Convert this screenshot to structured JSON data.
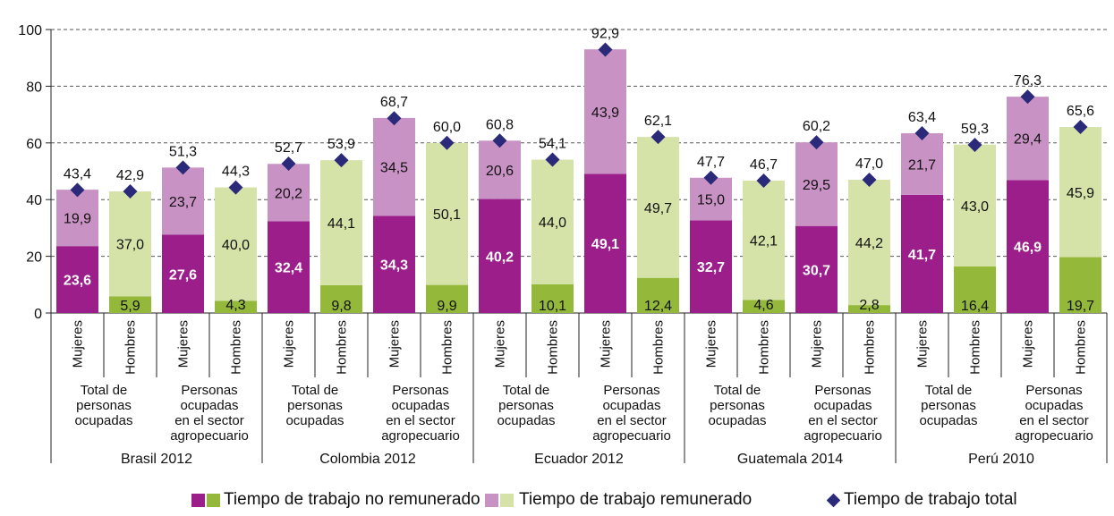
{
  "chart_data": {
    "type": "bar",
    "stacked": true,
    "ylim": [
      0,
      100
    ],
    "yticks": [
      0,
      20,
      40,
      60,
      80,
      100
    ],
    "ytick_labels": [
      "0",
      "20",
      "40",
      "60",
      "80",
      "100"
    ],
    "grid": "dashed-horizontal",
    "legend_position": "bottom",
    "gender_labels": [
      "Mujeres",
      "Hombres"
    ],
    "countries": [
      {
        "label": "Brasil 2012",
        "groups": [
          {
            "label_lines": [
              "Total de",
              "personas",
              "ocupadas"
            ],
            "bars": [
              {
                "gender": "Mujeres",
                "no_rem": 23.6,
                "no_rem_label": "23,6",
                "rem": 19.9,
                "rem_label": "19,9",
                "total": 43.4,
                "total_label": "43,4"
              },
              {
                "gender": "Hombres",
                "no_rem": 5.9,
                "no_rem_label": "5,9",
                "rem": 37.0,
                "rem_label": "37,0",
                "total": 42.9,
                "total_label": "42,9"
              }
            ]
          },
          {
            "label_lines": [
              "Personas",
              "ocupadas",
              "en el sector",
              "agropecuario"
            ],
            "bars": [
              {
                "gender": "Mujeres",
                "no_rem": 27.6,
                "no_rem_label": "27,6",
                "rem": 23.7,
                "rem_label": "23,7",
                "total": 51.3,
                "total_label": "51,3"
              },
              {
                "gender": "Hombres",
                "no_rem": 4.3,
                "no_rem_label": "4,3",
                "rem": 40.0,
                "rem_label": "40,0",
                "total": 44.3,
                "total_label": "44,3"
              }
            ]
          }
        ]
      },
      {
        "label": "Colombia 2012",
        "groups": [
          {
            "label_lines": [
              "Total de",
              "personas",
              "ocupadas"
            ],
            "bars": [
              {
                "gender": "Mujeres",
                "no_rem": 32.4,
                "no_rem_label": "32,4",
                "rem": 20.2,
                "rem_label": "20,2",
                "total": 52.7,
                "total_label": "52,7"
              },
              {
                "gender": "Hombres",
                "no_rem": 9.8,
                "no_rem_label": "9,8",
                "rem": 44.1,
                "rem_label": "44,1",
                "total": 53.9,
                "total_label": "53,9"
              }
            ]
          },
          {
            "label_lines": [
              "Personas",
              "ocupadas",
              "en el sector",
              "agropecuario"
            ],
            "bars": [
              {
                "gender": "Mujeres",
                "no_rem": 34.3,
                "no_rem_label": "34,3",
                "rem": 34.5,
                "rem_label": "34,5",
                "total": 68.7,
                "total_label": "68,7"
              },
              {
                "gender": "Hombres",
                "no_rem": 9.9,
                "no_rem_label": "9,9",
                "rem": 50.1,
                "rem_label": "50,1",
                "total": 60.0,
                "total_label": "60,0"
              }
            ]
          }
        ]
      },
      {
        "label": "Ecuador 2012",
        "groups": [
          {
            "label_lines": [
              "Total de",
              "personas",
              "ocupadas"
            ],
            "bars": [
              {
                "gender": "Mujeres",
                "no_rem": 40.2,
                "no_rem_label": "40,2",
                "rem": 20.6,
                "rem_label": "20,6",
                "total": 60.8,
                "total_label": "60,8"
              },
              {
                "gender": "Hombres",
                "no_rem": 10.1,
                "no_rem_label": "10,1",
                "rem": 44.0,
                "rem_label": "44,0",
                "total": 54.1,
                "total_label": "54,1"
              }
            ]
          },
          {
            "label_lines": [
              "Personas",
              "ocupadas",
              "en el sector",
              "agropecuario"
            ],
            "bars": [
              {
                "gender": "Mujeres",
                "no_rem": 49.1,
                "no_rem_label": "49,1",
                "rem": 43.9,
                "rem_label": "43,9",
                "total": 92.9,
                "total_label": "92,9"
              },
              {
                "gender": "Hombres",
                "no_rem": 12.4,
                "no_rem_label": "12,4",
                "rem": 49.7,
                "rem_label": "49,7",
                "total": 62.1,
                "total_label": "62,1"
              }
            ]
          }
        ]
      },
      {
        "label": "Guatemala 2014",
        "groups": [
          {
            "label_lines": [
              "Total de",
              "personas",
              "ocupadas"
            ],
            "bars": [
              {
                "gender": "Mujeres",
                "no_rem": 32.7,
                "no_rem_label": "32,7",
                "rem": 15.0,
                "rem_label": "15,0",
                "total": 47.7,
                "total_label": "47,7"
              },
              {
                "gender": "Hombres",
                "no_rem": 4.6,
                "no_rem_label": "4,6",
                "rem": 42.1,
                "rem_label": "42,1",
                "total": 46.7,
                "total_label": "46,7"
              }
            ]
          },
          {
            "label_lines": [
              "Personas",
              "ocupadas",
              "en el sector",
              "agropecuario"
            ],
            "bars": [
              {
                "gender": "Mujeres",
                "no_rem": 30.7,
                "no_rem_label": "30,7",
                "rem": 29.5,
                "rem_label": "29,5",
                "total": 60.2,
                "total_label": "60,2"
              },
              {
                "gender": "Hombres",
                "no_rem": 2.8,
                "no_rem_label": "2,8",
                "rem": 44.2,
                "rem_label": "44,2",
                "total": 47.0,
                "total_label": "47,0"
              }
            ]
          }
        ]
      },
      {
        "label": "Perú 2010",
        "groups": [
          {
            "label_lines": [
              "Total de",
              "personas",
              "ocupadas"
            ],
            "bars": [
              {
                "gender": "Mujeres",
                "no_rem": 41.7,
                "no_rem_label": "41,7",
                "rem": 21.7,
                "rem_label": "21,7",
                "total": 63.4,
                "total_label": "63,4"
              },
              {
                "gender": "Hombres",
                "no_rem": 16.4,
                "no_rem_label": "16,4",
                "rem": 43.0,
                "rem_label": "43,0",
                "total": 59.3,
                "total_label": "59,3"
              }
            ]
          },
          {
            "label_lines": [
              "Personas",
              "ocupadas",
              "en el sector",
              "agropecuario"
            ],
            "bars": [
              {
                "gender": "Mujeres",
                "no_rem": 46.9,
                "no_rem_label": "46,9",
                "rem": 29.4,
                "rem_label": "29,4",
                "total": 76.3,
                "total_label": "76,3"
              },
              {
                "gender": "Hombres",
                "no_rem": 19.7,
                "no_rem_label": "19,7",
                "rem": 45.9,
                "rem_label": "45,9",
                "total": 65.6,
                "total_label": "65,6"
              }
            ]
          }
        ]
      }
    ],
    "colors": {
      "no_rem_women": "#9b1e8a",
      "no_rem_men": "#93b83a",
      "rem_women": "#c992c4",
      "rem_men": "#d6e3a8",
      "total_marker": "#2b2a7a",
      "grid": "#555555",
      "axis": "#222222"
    }
  },
  "legend": {
    "no_rem_label": "Tiempo de trabajo no remunerado",
    "rem_label": "Tiempo de trabajo remunerado",
    "total_label": "Tiempo de trabajo total"
  }
}
